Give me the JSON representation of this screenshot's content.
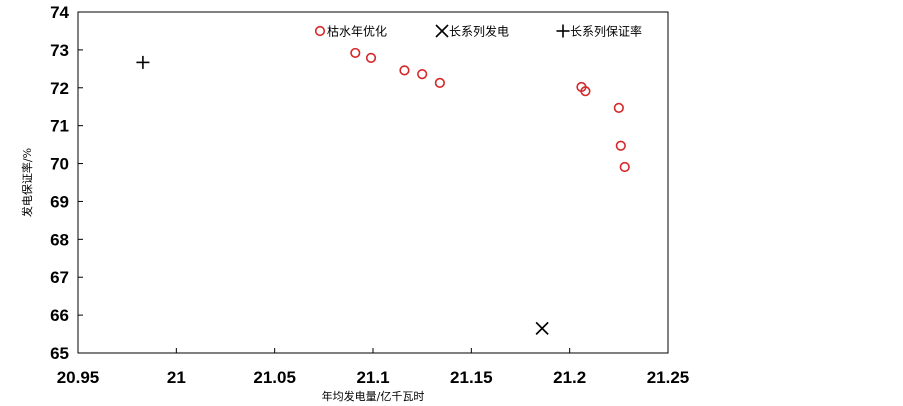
{
  "chart_data": {
    "type": "scatter",
    "title": "",
    "xlabel": "年均发电量/亿千瓦时",
    "ylabel": "发电保证率/%",
    "xlim": [
      20.95,
      21.25
    ],
    "ylim": [
      65,
      74
    ],
    "xticks": [
      "20.95",
      "21",
      "21.05",
      "21.1",
      "21.15",
      "21.2",
      "21.25"
    ],
    "xtick_values": [
      20.95,
      21.0,
      21.05,
      21.1,
      21.15,
      21.2,
      21.25
    ],
    "yticks": [
      "65",
      "66",
      "67",
      "68",
      "69",
      "70",
      "71",
      "72",
      "73",
      "74"
    ],
    "ytick_values": [
      65,
      66,
      67,
      68,
      69,
      70,
      71,
      72,
      73,
      74
    ],
    "grid": false,
    "legend_position": "top",
    "series": [
      {
        "name": "枯水年优化",
        "marker": "open-circle",
        "color": "#d62728",
        "points": [
          {
            "x": 21.091,
            "y": 72.92
          },
          {
            "x": 21.099,
            "y": 72.79
          },
          {
            "x": 21.116,
            "y": 72.46
          },
          {
            "x": 21.125,
            "y": 72.36
          },
          {
            "x": 21.134,
            "y": 72.13
          },
          {
            "x": 21.206,
            "y": 72.02
          },
          {
            "x": 21.208,
            "y": 71.91
          },
          {
            "x": 21.225,
            "y": 71.47
          },
          {
            "x": 21.226,
            "y": 70.47
          },
          {
            "x": 21.228,
            "y": 69.91
          }
        ]
      },
      {
        "name": "长系列发电",
        "marker": "x",
        "color": "#000000",
        "points": [
          {
            "x": 21.186,
            "y": 65.65
          }
        ]
      },
      {
        "name": "长系列保证率",
        "marker": "plus",
        "color": "#000000",
        "points": [
          {
            "x": 20.983,
            "y": 72.67
          }
        ]
      }
    ]
  }
}
